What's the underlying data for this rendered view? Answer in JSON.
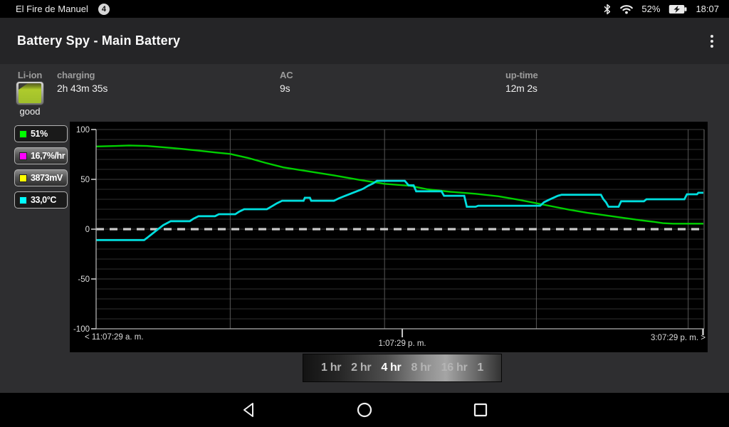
{
  "status_bar": {
    "device_name": "El Fire de Manuel",
    "notification_count": "4",
    "battery_percent": "52%",
    "time": "18:07",
    "icons": [
      "bluetooth-icon",
      "wifi-icon",
      "battery-charging-icon"
    ]
  },
  "app_bar": {
    "title": "Battery Spy - Main Battery",
    "overflow_menu": "more-options"
  },
  "info_panel": {
    "battery_type": "Li-ion",
    "battery_health": "good",
    "stats": [
      {
        "label": "charging",
        "value": "2h 43m 35s"
      },
      {
        "label": "AC",
        "value": "9s"
      },
      {
        "label": "up-time",
        "value": "12m 2s"
      }
    ]
  },
  "legend": [
    {
      "value": "51%",
      "color": "#00ff00",
      "raised": false
    },
    {
      "value": "16,7%/hr",
      "color": "#ff00ff",
      "raised": true
    },
    {
      "value": "3873mV",
      "color": "#ffff00",
      "raised": true
    },
    {
      "value": "33,0°C",
      "color": "#00ffff",
      "raised": false
    }
  ],
  "chart_data": {
    "type": "line",
    "title": "",
    "xlabel": "",
    "ylabel": "",
    "background": "#000000",
    "grid": true,
    "ylim": [
      -100,
      100
    ],
    "y_axis": {
      "ticks": [
        100,
        50,
        0,
        -50,
        -100
      ]
    },
    "x_axis": {
      "left_label": "< 11:07:29 a. m.",
      "center_label": "1:07:29 p. m.",
      "right_label": "3:07:29 p. m. >",
      "range_minutes": [
        0,
        240
      ],
      "hour_gridlines_minutes": [
        53,
        114,
        174,
        234
      ],
      "center_tick_minute": 121
    },
    "zero_line_dashed": true,
    "series": [
      {
        "name": "battery_level_percent",
        "color": "#00cf00",
        "width": 2.4,
        "points": [
          [
            0,
            83
          ],
          [
            8,
            83.5
          ],
          [
            13,
            84
          ],
          [
            20,
            83.5
          ],
          [
            30,
            81.5
          ],
          [
            40,
            79
          ],
          [
            47,
            77
          ],
          [
            53,
            75.5
          ],
          [
            60,
            71.5
          ],
          [
            67,
            66.5
          ],
          [
            74,
            62
          ],
          [
            84,
            58
          ],
          [
            94,
            54
          ],
          [
            104,
            49.5
          ],
          [
            114,
            45.5
          ],
          [
            124,
            43.5
          ],
          [
            131,
            40
          ],
          [
            140,
            37.5
          ],
          [
            150,
            35.5
          ],
          [
            159,
            33
          ],
          [
            167,
            29.5
          ],
          [
            174,
            26
          ],
          [
            181,
            22.5
          ],
          [
            187,
            19.5
          ],
          [
            194,
            16.5
          ],
          [
            201,
            14
          ],
          [
            208,
            11.5
          ],
          [
            215,
            9
          ],
          [
            220,
            7.5
          ],
          [
            224,
            6
          ],
          [
            228,
            5.5
          ],
          [
            240,
            5.5
          ]
        ]
      },
      {
        "name": "battery_temperature_celsius",
        "color": "#00dede",
        "width": 2.8,
        "points": [
          [
            0,
            -11
          ],
          [
            19,
            -11
          ],
          [
            20.5,
            -8
          ],
          [
            22,
            -5
          ],
          [
            23.5,
            -2
          ],
          [
            25,
            1
          ],
          [
            26.5,
            4
          ],
          [
            28,
            6
          ],
          [
            29.5,
            8
          ],
          [
            37,
            8
          ],
          [
            38.5,
            10.5
          ],
          [
            40.5,
            13
          ],
          [
            47,
            13
          ],
          [
            48.5,
            15
          ],
          [
            55,
            15
          ],
          [
            56.5,
            17.5
          ],
          [
            58.5,
            20
          ],
          [
            67.5,
            20
          ],
          [
            69.5,
            23
          ],
          [
            71.5,
            26
          ],
          [
            73.5,
            28.5
          ],
          [
            82,
            28.5
          ],
          [
            82.5,
            31.5
          ],
          [
            84.5,
            31.5
          ],
          [
            85,
            28.5
          ],
          [
            94,
            28.5
          ],
          [
            96,
            31
          ],
          [
            98.5,
            33.5
          ],
          [
            100.5,
            35.5
          ],
          [
            103,
            38
          ],
          [
            105.5,
            40.5
          ],
          [
            107.5,
            43.5
          ],
          [
            109.5,
            46
          ],
          [
            111,
            48.5
          ],
          [
            122,
            48.5
          ],
          [
            123.5,
            44
          ],
          [
            125.5,
            44
          ],
          [
            126.5,
            38
          ],
          [
            136.5,
            38
          ],
          [
            137.5,
            33.5
          ],
          [
            145.5,
            33.5
          ],
          [
            146.5,
            22.5
          ],
          [
            150,
            22.5
          ],
          [
            151,
            23.5
          ],
          [
            175.5,
            23.5
          ],
          [
            177,
            27
          ],
          [
            179,
            29.5
          ],
          [
            182.5,
            33.5
          ],
          [
            184,
            34.5
          ],
          [
            199.5,
            34.5
          ],
          [
            200.5,
            30
          ],
          [
            201.5,
            27
          ],
          [
            202.5,
            22.5
          ],
          [
            206.5,
            22.5
          ],
          [
            207.5,
            28
          ],
          [
            216.5,
            28
          ],
          [
            217.5,
            30
          ],
          [
            232.5,
            30
          ],
          [
            233.5,
            35
          ],
          [
            237.5,
            35
          ],
          [
            238,
            36.5
          ],
          [
            240,
            36.5
          ]
        ]
      }
    ]
  },
  "time_range": {
    "options": [
      "1 hr",
      "2 hr",
      "4 hr",
      "8 hr",
      "16 hr",
      "1"
    ],
    "selected": "4 hr"
  },
  "nav_bar": {
    "buttons": [
      "back",
      "home",
      "recents"
    ]
  }
}
